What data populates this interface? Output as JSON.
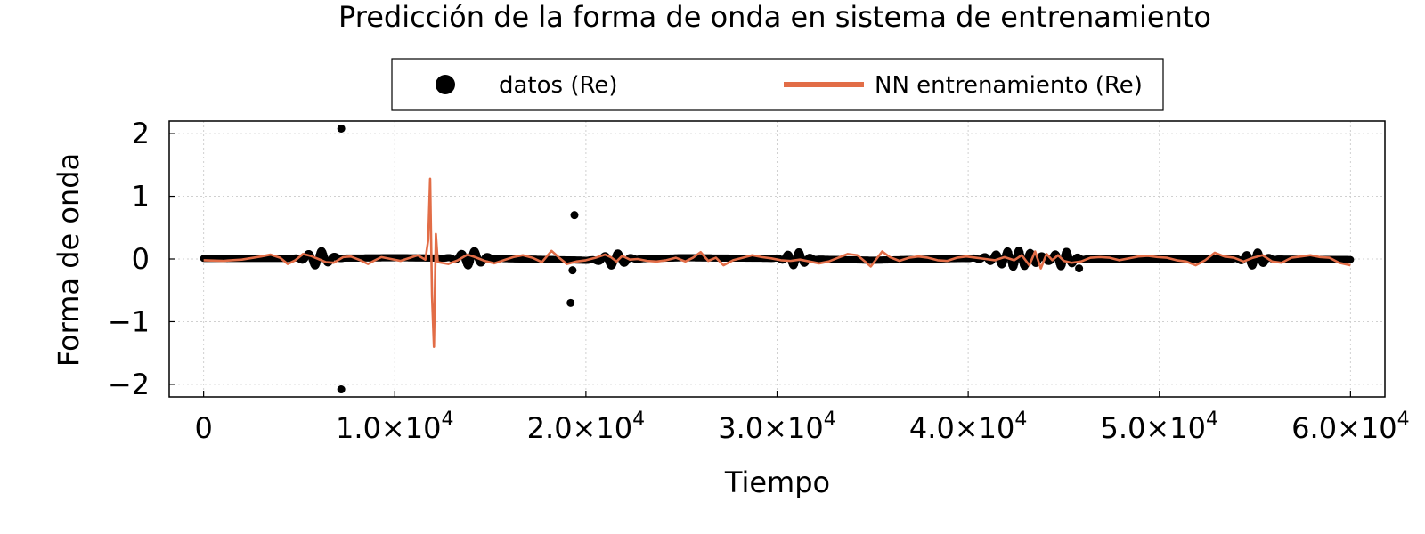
{
  "chart_data": {
    "type": "line",
    "title": "Predicción de la forma de onda en sistema de entrenamiento",
    "xlabel": "Tiempo",
    "ylabel": "Forma de onda",
    "xlim": [
      -1800,
      61800
    ],
    "ylim": [
      -2.2,
      2.2
    ],
    "x_ticks": [
      0,
      10000,
      20000,
      30000,
      40000,
      50000,
      60000
    ],
    "x_tick_labels": [
      {
        "main": "0",
        "exp": ""
      },
      {
        "main": "1.0×10",
        "exp": "4"
      },
      {
        "main": "2.0×10",
        "exp": "4"
      },
      {
        "main": "3.0×10",
        "exp": "4"
      },
      {
        "main": "4.0×10",
        "exp": "4"
      },
      {
        "main": "5.0×10",
        "exp": "4"
      },
      {
        "main": "6.0×10",
        "exp": "4"
      }
    ],
    "y_ticks": [
      2,
      1,
      0,
      -1,
      -2
    ],
    "y_tick_labels": [
      "2",
      "1",
      "0",
      "−1",
      "−2"
    ],
    "grid": true,
    "legend_position": "top-center",
    "colors": {
      "data": "#000000",
      "nn": "#e26d47"
    },
    "series": [
      {
        "name": "datos (Re)",
        "kind": "scatter",
        "color": "#000000",
        "baseline": [
          [
            0,
            0.01
          ],
          [
            5000,
            0.01
          ],
          [
            10000,
            0.02
          ],
          [
            15000,
            0.01
          ],
          [
            20000,
            -0.02
          ],
          [
            25000,
            0.02
          ],
          [
            30000,
            0.01
          ],
          [
            35000,
            -0.02
          ],
          [
            40000,
            0.01
          ],
          [
            45000,
            0.0
          ],
          [
            50000,
            0.0
          ],
          [
            55000,
            0.0
          ],
          [
            60000,
            -0.01
          ]
        ],
        "bursts": [
          {
            "center": 6000,
            "amp": 0.13,
            "width": 700,
            "period": 700
          },
          {
            "center": 14000,
            "amp": 0.13,
            "width": 700,
            "period": 700
          },
          {
            "center": 21500,
            "amp": 0.11,
            "width": 700,
            "period": 700
          },
          {
            "center": 31000,
            "amp": 0.12,
            "width": 600,
            "period": 600
          },
          {
            "center": 42500,
            "amp": 0.14,
            "width": 1300,
            "period": 600
          },
          {
            "center": 45000,
            "amp": 0.13,
            "width": 600,
            "period": 600
          },
          {
            "center": 55000,
            "amp": 0.12,
            "width": 600,
            "period": 600
          }
        ],
        "outliers": [
          [
            7200,
            2.08
          ],
          [
            7200,
            -2.08
          ],
          [
            19400,
            0.7
          ],
          [
            19300,
            -0.18
          ],
          [
            19200,
            -0.7
          ],
          [
            45800,
            -0.15
          ]
        ]
      },
      {
        "name": "NN entrenamiento (Re)",
        "kind": "line",
        "color": "#e26d47",
        "points": [
          [
            0,
            -0.02
          ],
          [
            1000,
            -0.03
          ],
          [
            2000,
            -0.01
          ],
          [
            3000,
            0.04
          ],
          [
            3500,
            0.07
          ],
          [
            4000,
            0.02
          ],
          [
            4400,
            -0.08
          ],
          [
            4800,
            -0.02
          ],
          [
            5200,
            0.08
          ],
          [
            5600,
            0.05
          ],
          [
            6000,
            0.0
          ],
          [
            6400,
            -0.05
          ],
          [
            6800,
            -0.06
          ],
          [
            7300,
            0.03
          ],
          [
            7700,
            0.04
          ],
          [
            8200,
            -0.02
          ],
          [
            8600,
            -0.08
          ],
          [
            8900,
            -0.03
          ],
          [
            9300,
            0.03
          ],
          [
            9800,
            0.0
          ],
          [
            10300,
            -0.03
          ],
          [
            10800,
            0.02
          ],
          [
            11200,
            0.06
          ],
          [
            11600,
            -0.01
          ],
          [
            11750,
            0.3
          ],
          [
            11850,
            1.28
          ],
          [
            11950,
            -0.6
          ],
          [
            12050,
            -1.4
          ],
          [
            12150,
            0.4
          ],
          [
            12250,
            -0.05
          ],
          [
            12800,
            -0.08
          ],
          [
            13300,
            -0.02
          ],
          [
            13800,
            0.07
          ],
          [
            14200,
            0.03
          ],
          [
            14700,
            -0.03
          ],
          [
            15200,
            -0.07
          ],
          [
            15700,
            -0.02
          ],
          [
            16200,
            0.03
          ],
          [
            16700,
            0.06
          ],
          [
            17200,
            0.02
          ],
          [
            17700,
            -0.05
          ],
          [
            18200,
            0.13
          ],
          [
            18600,
            0.02
          ],
          [
            19000,
            -0.08
          ],
          [
            19500,
            -0.04
          ],
          [
            20000,
            -0.02
          ],
          [
            20500,
            0.02
          ],
          [
            21000,
            0.07
          ],
          [
            21300,
            0.03
          ],
          [
            21600,
            -0.04
          ],
          [
            21900,
            0.05
          ],
          [
            22300,
            -0.01
          ],
          [
            22700,
            0.0
          ],
          [
            23200,
            -0.03
          ],
          [
            23700,
            -0.04
          ],
          [
            24200,
            -0.02
          ],
          [
            24700,
            0.02
          ],
          [
            25200,
            -0.04
          ],
          [
            25600,
            0.02
          ],
          [
            26000,
            0.11
          ],
          [
            26400,
            -0.03
          ],
          [
            26800,
            0.02
          ],
          [
            27200,
            -0.1
          ],
          [
            27700,
            -0.02
          ],
          [
            28200,
            0.02
          ],
          [
            28700,
            0.06
          ],
          [
            29200,
            0.03
          ],
          [
            29700,
            0.01
          ],
          [
            30200,
            -0.02
          ],
          [
            30700,
            -0.03
          ],
          [
            31200,
            -0.01
          ],
          [
            31700,
            -0.04
          ],
          [
            32200,
            -0.07
          ],
          [
            32700,
            -0.04
          ],
          [
            33200,
            0.02
          ],
          [
            33700,
            0.08
          ],
          [
            34200,
            0.06
          ],
          [
            34600,
            -0.04
          ],
          [
            34900,
            -0.12
          ],
          [
            35200,
            0.0
          ],
          [
            35500,
            0.12
          ],
          [
            35900,
            0.03
          ],
          [
            36400,
            -0.03
          ],
          [
            36900,
            0.02
          ],
          [
            37400,
            0.04
          ],
          [
            37900,
            0.02
          ],
          [
            38400,
            -0.02
          ],
          [
            38900,
            -0.03
          ],
          [
            39400,
            0.02
          ],
          [
            39900,
            0.04
          ],
          [
            40400,
            0.02
          ],
          [
            40900,
            0.0
          ],
          [
            41400,
            -0.02
          ],
          [
            41900,
            0.03
          ],
          [
            42400,
            -0.02
          ],
          [
            42800,
            0.06
          ],
          [
            43200,
            -0.1
          ],
          [
            43500,
            0.12
          ],
          [
            43800,
            -0.15
          ],
          [
            44100,
            0.08
          ],
          [
            44400,
            -0.02
          ],
          [
            44700,
            0.06
          ],
          [
            45000,
            -0.03
          ],
          [
            45400,
            -0.06
          ],
          [
            45900,
            -0.04
          ],
          [
            46400,
            0.02
          ],
          [
            46900,
            0.03
          ],
          [
            47400,
            0.02
          ],
          [
            47900,
            -0.02
          ],
          [
            48400,
            0.01
          ],
          [
            48900,
            0.04
          ],
          [
            49400,
            0.05
          ],
          [
            49900,
            0.03
          ],
          [
            50400,
            0.02
          ],
          [
            50900,
            -0.02
          ],
          [
            51400,
            -0.04
          ],
          [
            51900,
            -0.1
          ],
          [
            52400,
            -0.02
          ],
          [
            52900,
            0.1
          ],
          [
            53400,
            0.04
          ],
          [
            53900,
            0.02
          ],
          [
            54400,
            -0.04
          ],
          [
            54900,
            0.02
          ],
          [
            55400,
            0.06
          ],
          [
            55900,
            -0.04
          ],
          [
            56400,
            -0.06
          ],
          [
            56900,
            0.02
          ],
          [
            57400,
            0.04
          ],
          [
            57900,
            0.06
          ],
          [
            58400,
            0.03
          ],
          [
            58900,
            0.02
          ],
          [
            59400,
            -0.06
          ],
          [
            60000,
            -0.1
          ]
        ]
      }
    ]
  }
}
